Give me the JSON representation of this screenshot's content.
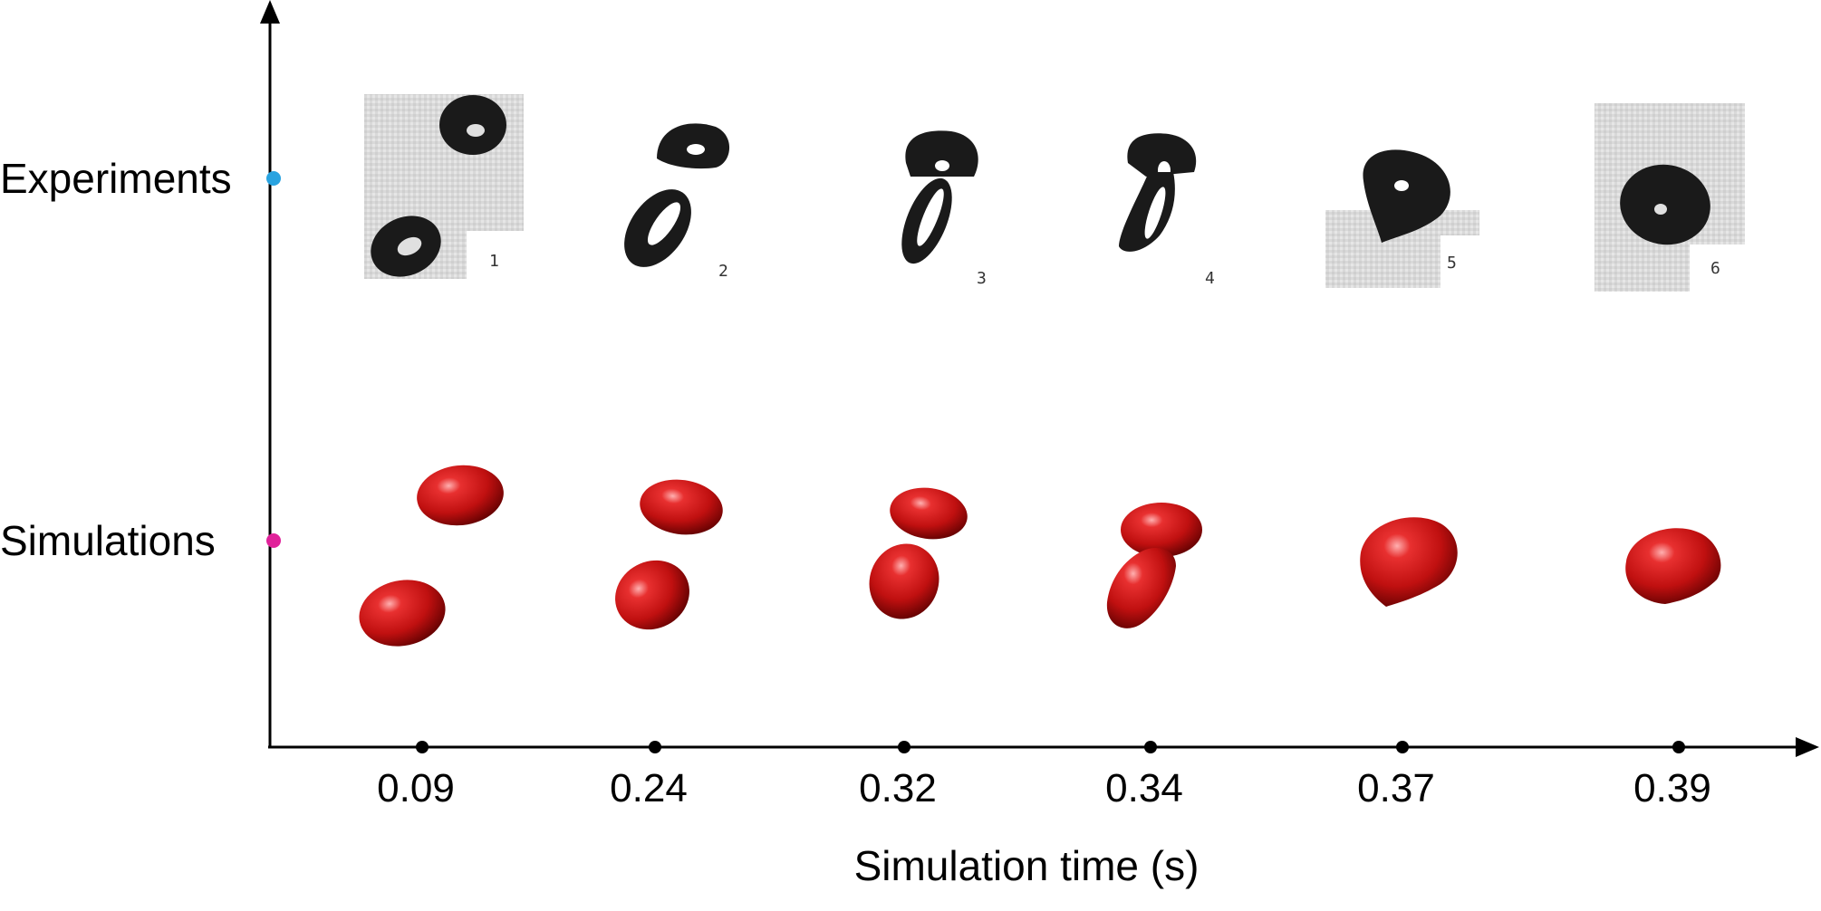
{
  "figure": {
    "rows": [
      {
        "label": "Experiments",
        "marker_color": "#29a3e0"
      },
      {
        "label": "Simulations",
        "marker_color": "#e0229a"
      }
    ],
    "x_axis": {
      "title": "Simulation time (s)",
      "ticks": [
        "0.09",
        "0.24",
        "0.32",
        "0.34",
        "0.37",
        "0.39"
      ]
    },
    "experiment_frames": [
      "1",
      "2",
      "3",
      "4",
      "5",
      "6"
    ],
    "colors": {
      "droplet_red": "#c41414",
      "experiment_dark": "#1a1a1a",
      "axis": "#000000"
    }
  }
}
